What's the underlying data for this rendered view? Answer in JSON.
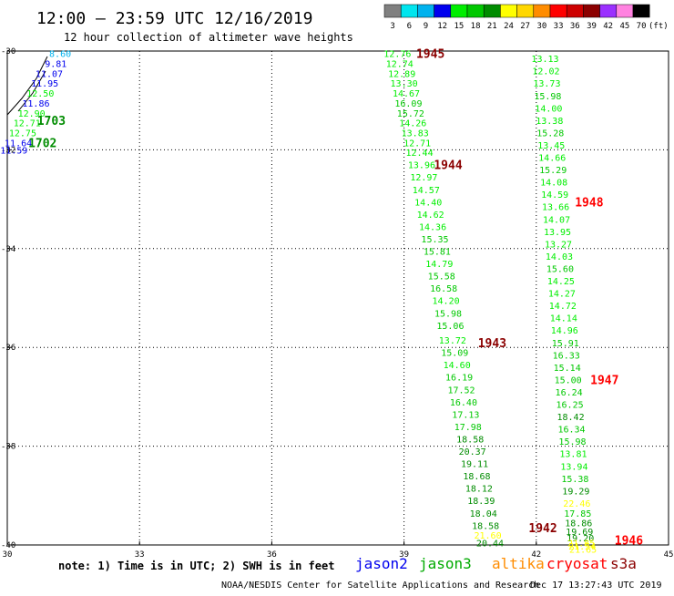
{
  "header": {
    "title": "12:00 – 23:59 UTC 12/16/2019",
    "subtitle": "12 hour collection of altimeter wave heights"
  },
  "legend": {
    "unit": "(ft)",
    "bins": [
      {
        "label": "3",
        "color": "#808080"
      },
      {
        "label": "6",
        "color": "#00e5ee"
      },
      {
        "label": "9",
        "color": "#00b2ee"
      },
      {
        "label": "12",
        "color": "#0000ee"
      },
      {
        "label": "15",
        "color": "#00ee00"
      },
      {
        "label": "18",
        "color": "#00c800"
      },
      {
        "label": "21",
        "color": "#008c00"
      },
      {
        "label": "24",
        "color": "#ffff00"
      },
      {
        "label": "27",
        "color": "#ffd700"
      },
      {
        "label": "30",
        "color": "#ff8c00"
      },
      {
        "label": "33",
        "color": "#ff0000"
      },
      {
        "label": "36",
        "color": "#cd0000"
      },
      {
        "label": "39",
        "color": "#8b0000"
      },
      {
        "label": "42",
        "color": "#9b30ff"
      },
      {
        "label": "45",
        "color": "#ff82e0"
      },
      {
        "label": "70",
        "color": "#000000"
      }
    ]
  },
  "chart_data": {
    "type": "scatter",
    "lon_ticks": [
      "30",
      "33",
      "36",
      "39",
      "42",
      "45"
    ],
    "lat_ticks": [
      "-30",
      "-32",
      "-34",
      "-36",
      "-38",
      "-40"
    ],
    "lon_range": [
      30,
      45
    ],
    "lat_range": [
      -30,
      -40
    ],
    "tracks": [
      {
        "pass_labels": [
          {
            "text": "1703",
            "lon": 31.0,
            "lat": -31.4,
            "color": "#008c00"
          },
          {
            "text": "1702",
            "lon": 30.8,
            "lat": -31.85,
            "color": "#008c00"
          }
        ],
        "points": [
          {
            "lon": 31.2,
            "lat": -30.05,
            "value": "8.60",
            "color": "#00b2ee"
          },
          {
            "lon": 31.1,
            "lat": -30.25,
            "value": "9.81",
            "color": "#0000ee"
          },
          {
            "lon": 30.95,
            "lat": -30.45,
            "value": "11.07",
            "color": "#0000ee"
          },
          {
            "lon": 30.85,
            "lat": -30.65,
            "value": "11.95",
            "color": "#0000ee"
          },
          {
            "lon": 30.75,
            "lat": -30.85,
            "value": "12.50",
            "color": "#00ee00"
          },
          {
            "lon": 30.65,
            "lat": -31.05,
            "value": "11.86",
            "color": "#0000ee"
          },
          {
            "lon": 30.55,
            "lat": -31.25,
            "value": "12.90",
            "color": "#00ee00"
          },
          {
            "lon": 30.45,
            "lat": -31.45,
            "value": "12.71",
            "color": "#00ee00"
          },
          {
            "lon": 30.35,
            "lat": -31.65,
            "value": "12.75",
            "color": "#00ee00"
          },
          {
            "lon": 30.25,
            "lat": -31.85,
            "value": "11.64",
            "color": "#0000ee"
          },
          {
            "lon": 30.15,
            "lat": -32.0,
            "value": "11.59",
            "color": "#0000ee"
          }
        ]
      },
      {
        "pass_labels": [
          {
            "text": "1945",
            "lon": 39.6,
            "lat": -30.05,
            "color": "#8b0000"
          },
          {
            "text": "1944",
            "lon": 40.0,
            "lat": -32.3,
            "color": "#8b0000"
          },
          {
            "text": "1943",
            "lon": 41.0,
            "lat": -35.9,
            "color": "#8b0000"
          },
          {
            "text": "1942",
            "lon": 42.15,
            "lat": -39.65,
            "color": "#8b0000"
          }
        ],
        "points": [
          {
            "lon": 38.85,
            "lat": -30.05,
            "value": "12.76",
            "color": "#00ee00"
          },
          {
            "lon": 38.9,
            "lat": -30.25,
            "value": "12.74",
            "color": "#00ee00"
          },
          {
            "lon": 38.95,
            "lat": -30.45,
            "value": "12.89",
            "color": "#00ee00"
          },
          {
            "lon": 39.0,
            "lat": -30.65,
            "value": "13.30",
            "color": "#00ee00"
          },
          {
            "lon": 39.05,
            "lat": -30.85,
            "value": "14.67",
            "color": "#00ee00"
          },
          {
            "lon": 39.1,
            "lat": -31.05,
            "value": "16.09",
            "color": "#00c800"
          },
          {
            "lon": 39.15,
            "lat": -31.25,
            "value": "15.72",
            "color": "#00c800"
          },
          {
            "lon": 39.2,
            "lat": -31.45,
            "value": "14.26",
            "color": "#00ee00"
          },
          {
            "lon": 39.25,
            "lat": -31.65,
            "value": "13.83",
            "color": "#00ee00"
          },
          {
            "lon": 39.3,
            "lat": -31.85,
            "value": "12.71",
            "color": "#00ee00"
          },
          {
            "lon": 39.35,
            "lat": -32.05,
            "value": "12.44",
            "color": "#00ee00"
          },
          {
            "lon": 39.4,
            "lat": -32.3,
            "value": "13.96",
            "color": "#00ee00"
          },
          {
            "lon": 39.45,
            "lat": -32.55,
            "value": "12.97",
            "color": "#00ee00"
          },
          {
            "lon": 39.5,
            "lat": -32.8,
            "value": "14.57",
            "color": "#00ee00"
          },
          {
            "lon": 39.55,
            "lat": -33.05,
            "value": "14.40",
            "color": "#00ee00"
          },
          {
            "lon": 39.6,
            "lat": -33.3,
            "value": "14.62",
            "color": "#00ee00"
          },
          {
            "lon": 39.65,
            "lat": -33.55,
            "value": "14.36",
            "color": "#00ee00"
          },
          {
            "lon": 39.7,
            "lat": -33.8,
            "value": "15.35",
            "color": "#00c800"
          },
          {
            "lon": 39.75,
            "lat": -34.05,
            "value": "15.81",
            "color": "#00c800"
          },
          {
            "lon": 39.8,
            "lat": -34.3,
            "value": "14.79",
            "color": "#00ee00"
          },
          {
            "lon": 39.85,
            "lat": -34.55,
            "value": "15.58",
            "color": "#00c800"
          },
          {
            "lon": 39.9,
            "lat": -34.8,
            "value": "16.58",
            "color": "#00c800"
          },
          {
            "lon": 39.95,
            "lat": -35.05,
            "value": "14.20",
            "color": "#00ee00"
          },
          {
            "lon": 40.0,
            "lat": -35.3,
            "value": "15.98",
            "color": "#00c800"
          },
          {
            "lon": 40.05,
            "lat": -35.55,
            "value": "15.06",
            "color": "#00c800"
          },
          {
            "lon": 40.1,
            "lat": -35.85,
            "value": "13.72",
            "color": "#00ee00"
          },
          {
            "lon": 40.15,
            "lat": -36.1,
            "value": "15.09",
            "color": "#00c800"
          },
          {
            "lon": 40.2,
            "lat": -36.35,
            "value": "14.60",
            "color": "#00ee00"
          },
          {
            "lon": 40.25,
            "lat": -36.6,
            "value": "16.19",
            "color": "#00c800"
          },
          {
            "lon": 40.3,
            "lat": -36.85,
            "value": "17.52",
            "color": "#00c800"
          },
          {
            "lon": 40.35,
            "lat": -37.1,
            "value": "16.40",
            "color": "#00c800"
          },
          {
            "lon": 40.4,
            "lat": -37.35,
            "value": "17.13",
            "color": "#00c800"
          },
          {
            "lon": 40.45,
            "lat": -37.6,
            "value": "17.98",
            "color": "#00c800"
          },
          {
            "lon": 40.5,
            "lat": -37.85,
            "value": "18.58",
            "color": "#008c00"
          },
          {
            "lon": 40.55,
            "lat": -38.1,
            "value": "20.37",
            "color": "#008c00"
          },
          {
            "lon": 40.6,
            "lat": -38.35,
            "value": "19.11",
            "color": "#008c00"
          },
          {
            "lon": 40.65,
            "lat": -38.6,
            "value": "18.68",
            "color": "#008c00"
          },
          {
            "lon": 40.7,
            "lat": -38.85,
            "value": "18.12",
            "color": "#008c00"
          },
          {
            "lon": 40.75,
            "lat": -39.1,
            "value": "18.39",
            "color": "#008c00"
          },
          {
            "lon": 40.8,
            "lat": -39.35,
            "value": "18.04",
            "color": "#008c00"
          },
          {
            "lon": 40.85,
            "lat": -39.6,
            "value": "18.58",
            "color": "#008c00"
          },
          {
            "lon": 40.9,
            "lat": -39.8,
            "value": "21.60",
            "color": "#ffff00"
          },
          {
            "lon": 40.95,
            "lat": -39.95,
            "value": "20.44",
            "color": "#008c00"
          }
        ]
      },
      {
        "pass_labels": [
          {
            "text": "1948",
            "lon": 43.2,
            "lat": -33.05,
            "color": "#ff0000"
          },
          {
            "text": "1947",
            "lon": 43.55,
            "lat": -36.65,
            "color": "#ff0000"
          },
          {
            "text": "1946",
            "lon": 44.1,
            "lat": -39.9,
            "color": "#ff0000"
          }
        ],
        "points": [
          {
            "lon": 42.2,
            "lat": -30.15,
            "value": "13.13",
            "color": "#00ee00"
          },
          {
            "lon": 42.22,
            "lat": -30.4,
            "value": "12.02",
            "color": "#00ee00"
          },
          {
            "lon": 42.24,
            "lat": -30.65,
            "value": "13.73",
            "color": "#00ee00"
          },
          {
            "lon": 42.26,
            "lat": -30.9,
            "value": "15.98",
            "color": "#00c800"
          },
          {
            "lon": 42.28,
            "lat": -31.15,
            "value": "14.00",
            "color": "#00ee00"
          },
          {
            "lon": 42.3,
            "lat": -31.4,
            "value": "13.38",
            "color": "#00ee00"
          },
          {
            "lon": 42.32,
            "lat": -31.65,
            "value": "15.28",
            "color": "#00c800"
          },
          {
            "lon": 42.34,
            "lat": -31.9,
            "value": "13.45",
            "color": "#00ee00"
          },
          {
            "lon": 42.36,
            "lat": -32.15,
            "value": "14.66",
            "color": "#00ee00"
          },
          {
            "lon": 42.38,
            "lat": -32.4,
            "value": "15.29",
            "color": "#00c800"
          },
          {
            "lon": 42.4,
            "lat": -32.65,
            "value": "14.08",
            "color": "#00ee00"
          },
          {
            "lon": 42.42,
            "lat": -32.9,
            "value": "14.59",
            "color": "#00ee00"
          },
          {
            "lon": 42.44,
            "lat": -33.15,
            "value": "13.66",
            "color": "#00ee00"
          },
          {
            "lon": 42.46,
            "lat": -33.4,
            "value": "14.07",
            "color": "#00ee00"
          },
          {
            "lon": 42.48,
            "lat": -33.65,
            "value": "13.95",
            "color": "#00ee00"
          },
          {
            "lon": 42.5,
            "lat": -33.9,
            "value": "13.27",
            "color": "#00ee00"
          },
          {
            "lon": 42.52,
            "lat": -34.15,
            "value": "14.03",
            "color": "#00ee00"
          },
          {
            "lon": 42.54,
            "lat": -34.4,
            "value": "15.60",
            "color": "#00c800"
          },
          {
            "lon": 42.56,
            "lat": -34.65,
            "value": "14.25",
            "color": "#00ee00"
          },
          {
            "lon": 42.58,
            "lat": -34.9,
            "value": "14.27",
            "color": "#00ee00"
          },
          {
            "lon": 42.6,
            "lat": -35.15,
            "value": "14.72",
            "color": "#00ee00"
          },
          {
            "lon": 42.62,
            "lat": -35.4,
            "value": "14.14",
            "color": "#00ee00"
          },
          {
            "lon": 42.64,
            "lat": -35.65,
            "value": "14.96",
            "color": "#00ee00"
          },
          {
            "lon": 42.66,
            "lat": -35.9,
            "value": "15.91",
            "color": "#00c800"
          },
          {
            "lon": 42.68,
            "lat": -36.15,
            "value": "16.33",
            "color": "#00c800"
          },
          {
            "lon": 42.7,
            "lat": -36.4,
            "value": "15.14",
            "color": "#00c800"
          },
          {
            "lon": 42.72,
            "lat": -36.65,
            "value": "15.00",
            "color": "#00c800"
          },
          {
            "lon": 42.74,
            "lat": -36.9,
            "value": "16.24",
            "color": "#00c800"
          },
          {
            "lon": 42.76,
            "lat": -37.15,
            "value": "16.25",
            "color": "#00c800"
          },
          {
            "lon": 42.78,
            "lat": -37.4,
            "value": "18.42",
            "color": "#008c00"
          },
          {
            "lon": 42.8,
            "lat": -37.65,
            "value": "16.34",
            "color": "#00c800"
          },
          {
            "lon": 42.82,
            "lat": -37.9,
            "value": "15.98",
            "color": "#00c800"
          },
          {
            "lon": 42.84,
            "lat": -38.15,
            "value": "13.81",
            "color": "#00ee00"
          },
          {
            "lon": 42.86,
            "lat": -38.4,
            "value": "13.94",
            "color": "#00ee00"
          },
          {
            "lon": 42.88,
            "lat": -38.65,
            "value": "15.38",
            "color": "#00c800"
          },
          {
            "lon": 42.9,
            "lat": -38.9,
            "value": "19.29",
            "color": "#008c00"
          },
          {
            "lon": 42.92,
            "lat": -39.15,
            "value": "22.46",
            "color": "#ffff00"
          },
          {
            "lon": 42.94,
            "lat": -39.35,
            "value": "17.85",
            "color": "#00c800"
          },
          {
            "lon": 42.96,
            "lat": -39.55,
            "value": "18.86",
            "color": "#008c00"
          },
          {
            "lon": 42.98,
            "lat": -39.72,
            "value": "19.69",
            "color": "#008c00"
          },
          {
            "lon": 43.0,
            "lat": -39.85,
            "value": "19.20",
            "color": "#008c00"
          },
          {
            "lon": 43.02,
            "lat": -39.95,
            "value": "21.85",
            "color": "#ffff00"
          },
          {
            "lon": 43.04,
            "lat": -40.02,
            "value": "21.54",
            "color": "#ffff00"
          },
          {
            "lon": 43.06,
            "lat": -40.08,
            "value": "21.65",
            "color": "#ffff00"
          }
        ]
      }
    ]
  },
  "footer": {
    "note": "note: 1) Time is in UTC; 2) SWH is in feet",
    "satellites": [
      {
        "name": "jason2",
        "color": "#0000ee"
      },
      {
        "name": "jason3",
        "color": "#00aa00"
      },
      {
        "name": "altika",
        "color": "#ff8c00"
      },
      {
        "name": "cryosat",
        "color": "#ff0000"
      },
      {
        "name": "s3a",
        "color": "#8b0000"
      }
    ],
    "credit": "NOAA/NESDIS Center for Satellite Applications and Research",
    "timestamp": "Dec 17 13:27:43 UTC 2019"
  }
}
